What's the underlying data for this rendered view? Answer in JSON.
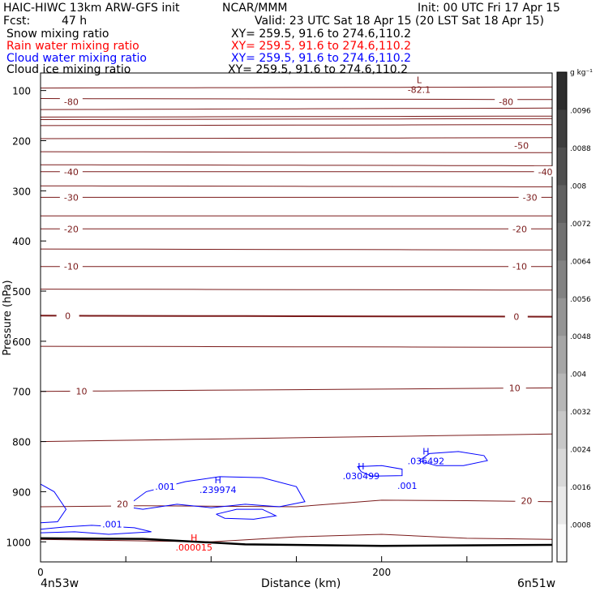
{
  "header": {
    "model": "HAIC-HIWC 13km ARW-GFS init",
    "org": "NCAR/MMM",
    "init": "Init: 00 UTC Fri 17 Apr 15",
    "fcst_label": "Fcst:",
    "fcst_value": "47 h",
    "valid": "Valid: 23 UTC Sat 18 Apr 15 (20 LST Sat 18 Apr 15)"
  },
  "fields": [
    {
      "name": "Snow mixing ratio",
      "xy": "XY= 259.5, 91.6 to 274.6,110.2",
      "color": "#000000"
    },
    {
      "name": "Rain water mixing ratio",
      "xy": "XY= 259.5, 91.6 to 274.6,110.2",
      "color": "#ff0000"
    },
    {
      "name": "Cloud water mixing ratio",
      "xy": "XY= 259.5, 91.6 to 274.6,110.2",
      "color": "#0000ff"
    },
    {
      "name": "Cloud ice mixing ratio",
      "xy": "XY= 259.5, 91.6 to 274.6,110.2",
      "color": "#000000"
    }
  ],
  "chart_data": {
    "type": "cross-section contour",
    "xlabel": "Distance (km)",
    "ylabel": "Pressure (hPa)",
    "xlim": [
      0,
      300
    ],
    "ylim": [
      1040,
      65
    ],
    "x_ticks": [
      0,
      50,
      100,
      150,
      200,
      250,
      300
    ],
    "x_tick_labels": [
      "0",
      "",
      "",
      "",
      "200",
      "",
      ""
    ],
    "y_ticks": [
      100,
      200,
      300,
      400,
      500,
      600,
      700,
      800,
      900,
      1000
    ],
    "y_tick_labels": [
      "100",
      "200",
      "300",
      "400",
      "500",
      "600",
      "700",
      "800",
      "900",
      "1000"
    ],
    "left_endpoint": "4n53w",
    "right_endpoint": "6n51w",
    "colors": {
      "temperature": "#7a1a1a",
      "cloud_water": "#0000ff",
      "rain": "#ff0000",
      "terrain": "#000000"
    },
    "isotherm_labels": [
      {
        "text": "-80",
        "x": 18,
        "p": 122
      },
      {
        "text": "-80",
        "x": 273,
        "p": 122
      },
      {
        "text": "-50",
        "x": 282,
        "p": 210
      },
      {
        "text": "-40",
        "x": 18,
        "p": 262
      },
      {
        "text": "-40",
        "x": 296,
        "p": 262
      },
      {
        "text": "-30",
        "x": 18,
        "p": 313
      },
      {
        "text": "-30",
        "x": 287,
        "p": 313
      },
      {
        "text": "-20",
        "x": 18,
        "p": 376
      },
      {
        "text": "-20",
        "x": 281,
        "p": 376
      },
      {
        "text": "-10",
        "x": 18,
        "p": 451
      },
      {
        "text": "-10",
        "x": 281,
        "p": 451
      },
      {
        "text": "0",
        "x": 16,
        "p": 549
      },
      {
        "text": "0",
        "x": 279,
        "p": 551
      },
      {
        "text": "10",
        "x": 24,
        "p": 700
      },
      {
        "text": "10",
        "x": 278,
        "p": 693
      },
      {
        "text": "20",
        "x": 48,
        "p": 924
      },
      {
        "text": "20",
        "x": 285,
        "p": 918
      }
    ],
    "extrema": [
      {
        "type": "L",
        "value": "-82.1",
        "x": 222,
        "p": 85,
        "color": "#7a1a1a"
      },
      {
        "type": "H",
        "value": ".239974",
        "x": 104,
        "p": 883,
        "color": "#0000ff"
      },
      {
        "type": "H",
        "value": ".030499",
        "x": 188,
        "p": 856,
        "color": "#0000ff"
      },
      {
        "type": "H",
        "value": ".036492",
        "x": 226,
        "p": 826,
        "color": "#0000ff"
      },
      {
        "type": "H",
        "value": ".000015",
        "x": 90,
        "p": 998,
        "color": "#ff0000"
      }
    ],
    "contour_labels": [
      {
        "text": ".001",
        "x": 73,
        "p": 890,
        "color": "#0000ff"
      },
      {
        "text": ".001",
        "x": 42,
        "p": 965,
        "color": "#0000ff"
      },
      {
        "text": ".001",
        "x": 215,
        "p": 888,
        "color": "#0000ff"
      }
    ],
    "colorbar": {
      "unit": "g kg⁻¹",
      "labels": [
        ".0096",
        ".0088",
        ".008",
        ".0072",
        ".0064",
        ".0056",
        ".0048",
        ".004",
        ".0032",
        ".0024",
        ".0016",
        ".0008"
      ]
    }
  }
}
